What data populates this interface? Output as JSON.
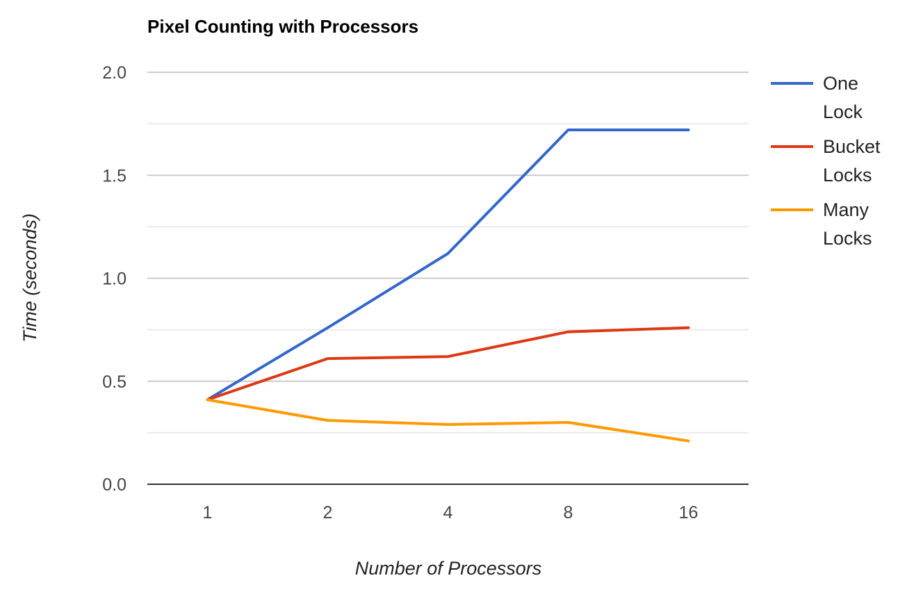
{
  "chart_data": {
    "type": "line",
    "title": "Pixel Counting with Processors",
    "xlabel": "Number of Processors",
    "ylabel": "Time (seconds)",
    "categories": [
      "1",
      "2",
      "4",
      "8",
      "16"
    ],
    "ylim": [
      0,
      2.0
    ],
    "y_ticks": [
      "0.0",
      "0.5",
      "1.0",
      "1.5",
      "2.0"
    ],
    "y_tick_values": [
      0,
      0.5,
      1.0,
      1.5,
      2.0
    ],
    "y_minor_gridlines": [
      0.25,
      0.75,
      1.25,
      1.75
    ],
    "grid": true,
    "legend_position": "right",
    "series": [
      {
        "name": "One Lock",
        "legend_lines": [
          "One",
          "Lock"
        ],
        "color": "#3366cc",
        "values": [
          0.41,
          0.76,
          1.12,
          1.72,
          1.72
        ]
      },
      {
        "name": "Bucket Locks",
        "legend_lines": [
          "Bucket",
          "Locks"
        ],
        "color": "#dc3912",
        "values": [
          0.41,
          0.61,
          0.62,
          0.74,
          0.76
        ]
      },
      {
        "name": "Many Locks",
        "legend_lines": [
          "Many",
          "Locks"
        ],
        "color": "#ff9900",
        "values": [
          0.41,
          0.31,
          0.29,
          0.3,
          0.21
        ]
      }
    ]
  }
}
